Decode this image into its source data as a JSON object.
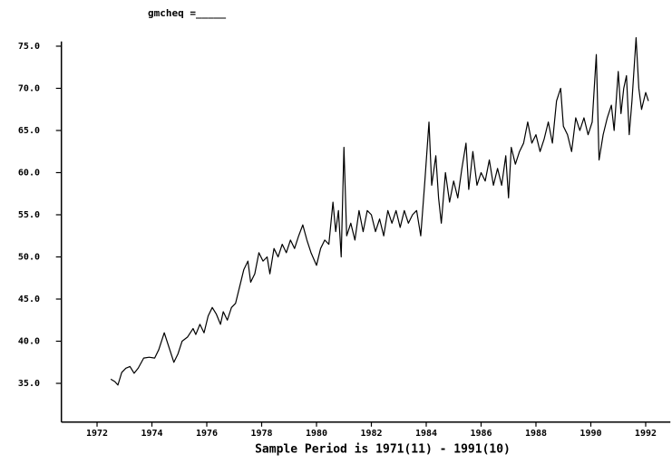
{
  "chart_data": {
    "type": "line",
    "title": "gmcheq  =_____",
    "x_label": "Sample Period is 1971(11) - 1991(10)",
    "xlim": [
      1970.7,
      1992.9
    ],
    "xticks": [
      1972,
      1974,
      1976,
      1978,
      1980,
      1982,
      1984,
      1986,
      1988,
      1990,
      1992
    ],
    "ylim": [
      30.4,
      76.2
    ],
    "yticks": [
      {
        "value": 35,
        "label": "35.0"
      },
      {
        "value": 40,
        "label": "40.0"
      },
      {
        "value": 45,
        "label": "45.0"
      },
      {
        "value": 50,
        "label": "50.0"
      },
      {
        "value": 55,
        "label": "55.0"
      },
      {
        "value": 60,
        "label": "60.0"
      },
      {
        "value": 65,
        "label": "65.0"
      },
      {
        "value": 70,
        "label": "70.0"
      },
      {
        "value": 75,
        "label": "75.0"
      }
    ],
    "grid": false,
    "color": "#000000",
    "x": [
      1972.5,
      1972.65,
      1972.76,
      1972.9,
      1973.05,
      1973.2,
      1973.35,
      1973.5,
      1973.7,
      1973.9,
      1974.1,
      1974.25,
      1974.45,
      1974.6,
      1974.8,
      1974.95,
      1975.1,
      1975.3,
      1975.5,
      1975.6,
      1975.75,
      1975.9,
      1976.05,
      1976.2,
      1976.35,
      1976.5,
      1976.6,
      1976.75,
      1976.9,
      1977.05,
      1977.2,
      1977.35,
      1977.5,
      1977.6,
      1977.75,
      1977.9,
      1978.05,
      1978.2,
      1978.3,
      1978.45,
      1978.6,
      1978.75,
      1978.9,
      1979.05,
      1979.2,
      1979.35,
      1979.5,
      1979.65,
      1979.8,
      1980.0,
      1980.15,
      1980.3,
      1980.45,
      1980.6,
      1980.7,
      1980.8,
      1980.9,
      1981.0,
      1981.1,
      1981.25,
      1981.4,
      1981.55,
      1981.7,
      1981.85,
      1982.0,
      1982.15,
      1982.3,
      1982.45,
      1982.6,
      1982.75,
      1982.9,
      1983.05,
      1983.2,
      1983.35,
      1983.5,
      1983.65,
      1983.8,
      1983.95,
      1984.1,
      1984.2,
      1984.35,
      1984.45,
      1984.55,
      1984.7,
      1984.85,
      1985.0,
      1985.15,
      1985.3,
      1985.45,
      1985.55,
      1985.7,
      1985.85,
      1986.0,
      1986.15,
      1986.3,
      1986.45,
      1986.6,
      1986.75,
      1986.9,
      1987.0,
      1987.1,
      1987.25,
      1987.4,
      1987.55,
      1987.7,
      1987.85,
      1988.0,
      1988.15,
      1988.3,
      1988.45,
      1988.6,
      1988.75,
      1988.9,
      1989.0,
      1989.15,
      1989.3,
      1989.45,
      1989.6,
      1989.75,
      1989.9,
      1990.05,
      1990.2,
      1990.3,
      1990.45,
      1990.6,
      1990.75,
      1990.85,
      1991.0,
      1991.1,
      1991.2,
      1991.3,
      1991.4,
      1991.5,
      1991.65,
      1991.75,
      1991.85,
      1992.0,
      1992.1
    ],
    "values": [
      35.5,
      35.2,
      34.8,
      36.3,
      36.8,
      37.0,
      36.2,
      36.8,
      38.0,
      38.1,
      38.0,
      39.0,
      41.0,
      39.5,
      37.5,
      38.5,
      40.0,
      40.5,
      41.5,
      40.8,
      42.0,
      41.0,
      43.0,
      44.0,
      43.2,
      42.0,
      43.5,
      42.5,
      44.0,
      44.5,
      46.5,
      48.5,
      49.5,
      47.0,
      48.0,
      50.5,
      49.5,
      50.0,
      48.0,
      51.0,
      50.0,
      51.5,
      50.5,
      52.0,
      51.0,
      52.5,
      53.8,
      52.0,
      50.5,
      49.0,
      51.0,
      52.0,
      51.5,
      56.5,
      53.0,
      55.5,
      50.0,
      63.0,
      52.5,
      54.0,
      52.0,
      55.5,
      53.0,
      55.5,
      55.0,
      53.0,
      54.5,
      52.5,
      55.5,
      54.0,
      55.5,
      53.5,
      55.5,
      54.0,
      55.0,
      55.5,
      52.5,
      59.0,
      66.0,
      58.5,
      62.0,
      57.0,
      54.0,
      60.0,
      56.5,
      59.0,
      57.0,
      60.5,
      63.5,
      58.0,
      62.5,
      58.5,
      60.0,
      59.0,
      61.5,
      58.5,
      60.5,
      58.5,
      62.0,
      57.0,
      63.0,
      61.0,
      62.5,
      63.5,
      66.0,
      63.5,
      64.5,
      62.5,
      64.0,
      66.0,
      63.5,
      68.5,
      70.0,
      65.5,
      64.5,
      62.5,
      66.5,
      65.0,
      66.5,
      64.5,
      66.0,
      74.0,
      61.5,
      64.5,
      66.5,
      68.0,
      65.0,
      72.0,
      67.0,
      70.0,
      71.5,
      64.5,
      68.5,
      76.0,
      70.0,
      67.5,
      69.5,
      68.5
    ]
  }
}
